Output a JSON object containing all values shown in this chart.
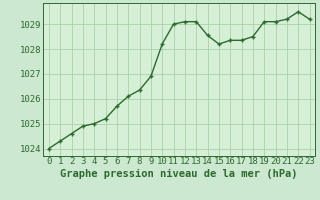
{
  "x": [
    0,
    1,
    2,
    3,
    4,
    5,
    6,
    7,
    8,
    9,
    10,
    11,
    12,
    13,
    14,
    15,
    16,
    17,
    18,
    19,
    20,
    21,
    22,
    23
  ],
  "y": [
    1024.0,
    1024.3,
    1024.6,
    1024.9,
    1025.0,
    1025.2,
    1025.7,
    1026.1,
    1026.35,
    1026.9,
    1028.2,
    1029.0,
    1029.1,
    1029.1,
    1028.55,
    1028.2,
    1028.35,
    1028.35,
    1028.5,
    1029.1,
    1029.1,
    1029.2,
    1029.5,
    1029.2
  ],
  "line_color": "#2d6a2d",
  "marker": "+",
  "marker_size": 3.5,
  "bg_color": "#cce8d0",
  "plot_bg_color": "#d6f0d8",
  "grid_color": "#aacfaa",
  "ylabel_ticks": [
    1024,
    1025,
    1026,
    1027,
    1028,
    1029
  ],
  "xlabel": "Graphe pression niveau de la mer (hPa)",
  "ylim": [
    1023.7,
    1029.85
  ],
  "xlim": [
    -0.5,
    23.5
  ],
  "tick_color": "#2d6a2d",
  "xlabel_fontsize": 7.5,
  "tick_fontsize": 6.5,
  "linewidth": 1.0
}
